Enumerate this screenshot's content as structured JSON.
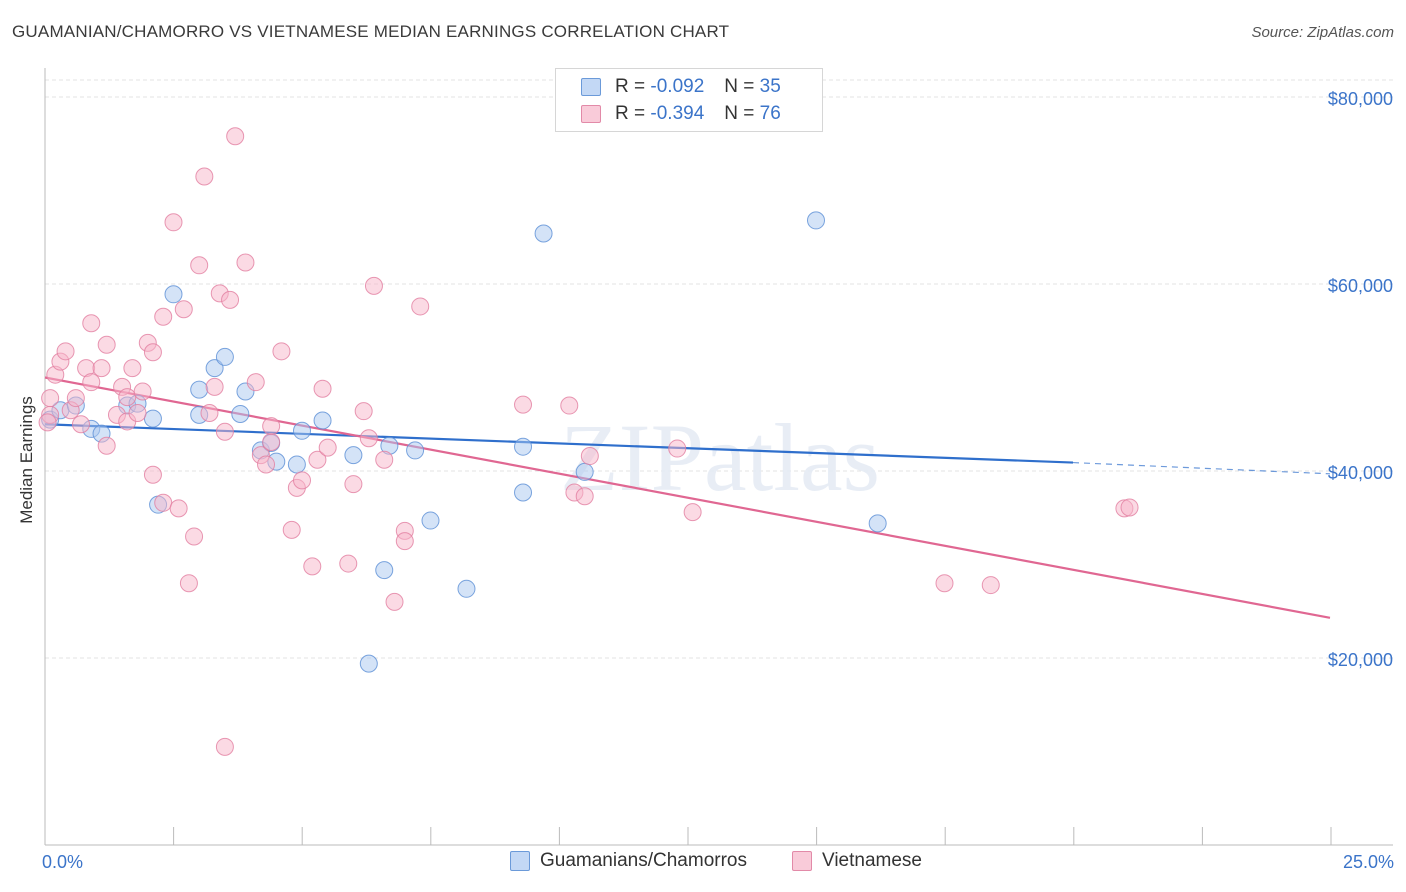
{
  "title": "GUAMANIAN/CHAMORRO VS VIETNAMESE MEDIAN EARNINGS CORRELATION CHART",
  "source": "Source: ZipAtlas.com",
  "watermark": "ZIPatlas",
  "legend": {
    "rows": [
      {
        "r_label": "R =",
        "r_value": "-0.092",
        "n_label": "N =",
        "n_value": "35",
        "color": "#a9c8f0"
      },
      {
        "r_label": "R =",
        "r_value": "-0.394",
        "n_label": "N =",
        "n_value": "76",
        "color": "#f7b6c9"
      }
    ]
  },
  "bottom_legend": [
    "Guamanians/Chamorros",
    "Vietnamese"
  ],
  "axes": {
    "ylabel": "Median Earnings",
    "x_min_label": "0.0%",
    "x_max_label": "25.0%",
    "y_tick_labels": [
      "$80,000",
      "$60,000",
      "$40,000",
      "$20,000"
    ]
  },
  "chart_data": {
    "type": "scatter",
    "title": "GUAMANIAN/CHAMORRO VS VIETNAMESE MEDIAN EARNINGS CORRELATION CHART",
    "xlabel": "",
    "ylabel": "Median Earnings",
    "xlim": [
      0,
      25
    ],
    "ylim": [
      0,
      82000
    ],
    "x_unit": "%",
    "y_ticks": [
      20000,
      40000,
      60000,
      80000
    ],
    "grid": true,
    "legend_position": "top-center",
    "series": [
      {
        "name": "Guamanians/Chamorros",
        "color": "#a9c8f0",
        "edge": "#5b8fd6",
        "trend": {
          "x": [
            0,
            20
          ],
          "y": [
            45000,
            40900
          ],
          "dashed_to": [
            25,
            39700
          ],
          "color": "#2f6fcc"
        },
        "points": [
          [
            0.1,
            45500
          ],
          [
            0.3,
            46500
          ],
          [
            0.6,
            47000
          ],
          [
            0.9,
            44500
          ],
          [
            1.1,
            44000
          ],
          [
            1.6,
            47000
          ],
          [
            1.8,
            47200
          ],
          [
            2.1,
            45600
          ],
          [
            2.2,
            36400
          ],
          [
            2.5,
            58900
          ],
          [
            3.0,
            46000
          ],
          [
            3.0,
            48700
          ],
          [
            3.3,
            51000
          ],
          [
            3.5,
            52200
          ],
          [
            3.8,
            46100
          ],
          [
            3.9,
            48500
          ],
          [
            4.2,
            42200
          ],
          [
            4.4,
            43000
          ],
          [
            4.5,
            41000
          ],
          [
            4.9,
            40700
          ],
          [
            5.0,
            44300
          ],
          [
            5.4,
            45400
          ],
          [
            6.0,
            41700
          ],
          [
            6.3,
            19400
          ],
          [
            6.6,
            29400
          ],
          [
            6.7,
            42700
          ],
          [
            7.2,
            42200
          ],
          [
            7.5,
            34700
          ],
          [
            8.2,
            27400
          ],
          [
            9.3,
            37700
          ],
          [
            9.3,
            42600
          ],
          [
            9.7,
            65400
          ],
          [
            10.5,
            39900
          ],
          [
            15.0,
            66800
          ],
          [
            16.2,
            34400
          ]
        ]
      },
      {
        "name": "Vietnamese",
        "color": "#f7b6c9",
        "edge": "#e27ea0",
        "trend": {
          "x": [
            0,
            25
          ],
          "y": [
            50000,
            24300
          ],
          "color": "#e06792"
        },
        "points": [
          [
            0.1,
            46000
          ],
          [
            0.1,
            47800
          ],
          [
            0.2,
            50300
          ],
          [
            0.3,
            51700
          ],
          [
            0.4,
            52800
          ],
          [
            0.5,
            46500
          ],
          [
            0.6,
            47800
          ],
          [
            0.7,
            45000
          ],
          [
            0.8,
            51000
          ],
          [
            0.9,
            49500
          ],
          [
            0.9,
            55800
          ],
          [
            1.1,
            51000
          ],
          [
            1.2,
            53500
          ],
          [
            1.2,
            42700
          ],
          [
            1.4,
            46000
          ],
          [
            1.5,
            49000
          ],
          [
            1.6,
            45300
          ],
          [
            1.6,
            47900
          ],
          [
            1.7,
            51000
          ],
          [
            1.8,
            46200
          ],
          [
            1.9,
            48500
          ],
          [
            2.0,
            53700
          ],
          [
            2.1,
            52700
          ],
          [
            2.1,
            39600
          ],
          [
            2.3,
            56500
          ],
          [
            2.3,
            36600
          ],
          [
            2.5,
            66600
          ],
          [
            2.6,
            36000
          ],
          [
            2.7,
            57300
          ],
          [
            2.8,
            28000
          ],
          [
            2.9,
            33000
          ],
          [
            3.0,
            62000
          ],
          [
            3.1,
            71500
          ],
          [
            3.2,
            46200
          ],
          [
            3.3,
            49000
          ],
          [
            3.4,
            59000
          ],
          [
            3.5,
            44200
          ],
          [
            3.5,
            10500
          ],
          [
            3.6,
            58300
          ],
          [
            3.7,
            75800
          ],
          [
            3.9,
            62300
          ],
          [
            4.1,
            49500
          ],
          [
            4.2,
            41700
          ],
          [
            4.3,
            40700
          ],
          [
            4.4,
            43100
          ],
          [
            4.4,
            44800
          ],
          [
            4.6,
            52800
          ],
          [
            4.8,
            33700
          ],
          [
            4.9,
            38200
          ],
          [
            5.0,
            39000
          ],
          [
            5.2,
            29800
          ],
          [
            5.3,
            41200
          ],
          [
            5.4,
            48800
          ],
          [
            5.5,
            42500
          ],
          [
            5.9,
            30100
          ],
          [
            6.0,
            38600
          ],
          [
            6.2,
            46400
          ],
          [
            6.3,
            43500
          ],
          [
            6.4,
            59800
          ],
          [
            6.6,
            41200
          ],
          [
            6.8,
            26000
          ],
          [
            7.0,
            33600
          ],
          [
            7.0,
            32500
          ],
          [
            7.3,
            57600
          ],
          [
            9.3,
            47100
          ],
          [
            10.2,
            47000
          ],
          [
            10.3,
            37700
          ],
          [
            10.5,
            37300
          ],
          [
            10.6,
            41600
          ],
          [
            12.3,
            42400
          ],
          [
            12.6,
            35600
          ],
          [
            17.5,
            28000
          ],
          [
            18.4,
            27800
          ],
          [
            21.0,
            36000
          ],
          [
            21.1,
            36100
          ],
          [
            0.05,
            45200
          ]
        ]
      }
    ]
  }
}
